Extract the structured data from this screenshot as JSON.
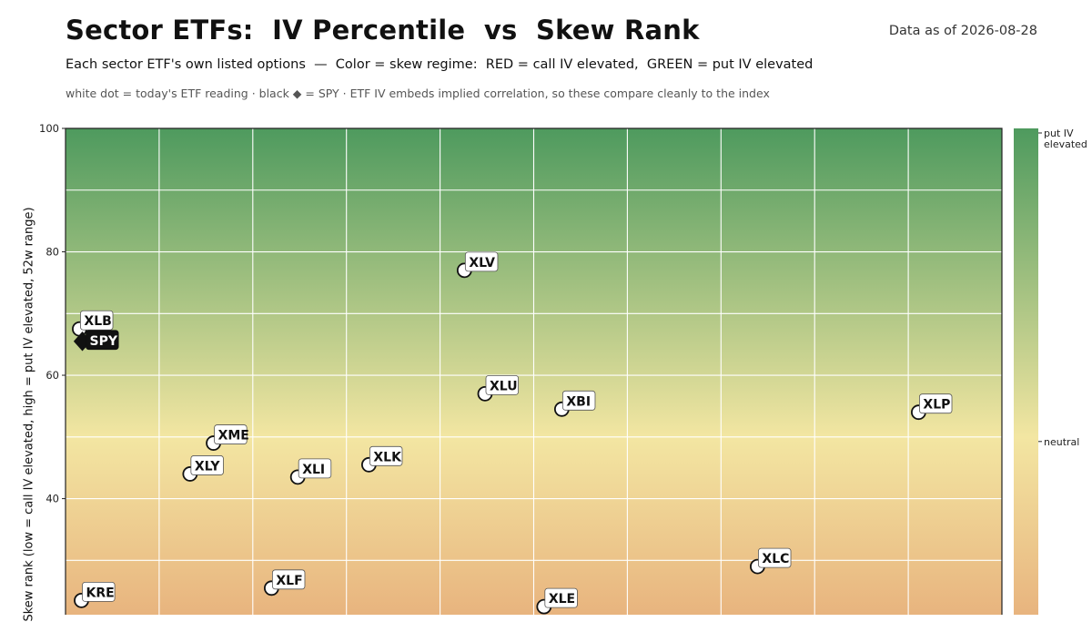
{
  "header": {
    "title": "Sector ETFs:  IV Percentile  vs  Skew Rank",
    "subtitle": "Each sector ETF's own listed options  —  Color = skew regime:  RED = call IV elevated,  GREEN = put IV elevated",
    "note": "white dot = today's ETF reading · black ◆ = SPY · ETF IV embeds implied correlation, so these compare cleanly to the index",
    "as_of": "Data as of 2026-08-28"
  },
  "colors": {
    "put_elevated": "#4e9a5e",
    "neutral": "#f3e6a2",
    "call_elevated": "#e08f64",
    "marker_fill": "#ffffff",
    "spy_fill": "#111111"
  },
  "chart_data": {
    "type": "scatter",
    "ylabel": "Skew rank  (low = call IV elevated, high = put IV elevated,  52w range)",
    "y_ticks": [
      40,
      60,
      80,
      100
    ],
    "ylim_top": 100,
    "x_gridlines": 10,
    "grid": true,
    "colorbar": {
      "labels": [
        {
          "text": "put IV elevated",
          "value": 100
        },
        {
          "text": "neutral",
          "value": 50
        }
      ]
    },
    "points": [
      {
        "label": "XLB",
        "x": 1.5,
        "y": 67.5
      },
      {
        "label": "KRE",
        "x": 1.7,
        "y": 23.5
      },
      {
        "label": "XLY",
        "x": 13.3,
        "y": 44
      },
      {
        "label": "XME",
        "x": 15.8,
        "y": 49
      },
      {
        "label": "XLF",
        "x": 22,
        "y": 25.5
      },
      {
        "label": "XLI",
        "x": 24.8,
        "y": 43.5
      },
      {
        "label": "XLK",
        "x": 32.4,
        "y": 45.5
      },
      {
        "label": "XLV",
        "x": 42.6,
        "y": 77
      },
      {
        "label": "XLU",
        "x": 44.8,
        "y": 57
      },
      {
        "label": "XLE",
        "x": 51.1,
        "y": 22.5
      },
      {
        "label": "XBI",
        "x": 53,
        "y": 54.5
      },
      {
        "label": "XLC",
        "x": 73.9,
        "y": 29
      },
      {
        "label": "XLP",
        "x": 91.1,
        "y": 54
      }
    ],
    "spy": {
      "label": "SPY",
      "x": 1.8,
      "y": 65.5
    }
  }
}
